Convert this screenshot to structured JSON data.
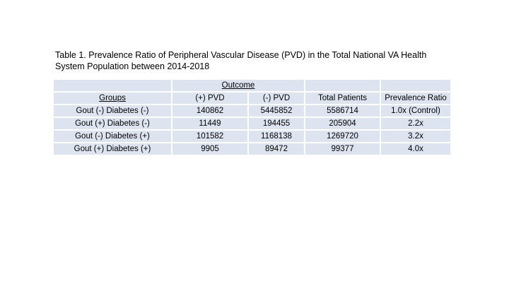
{
  "slide": {
    "title_line": "Table 1. Prevalence Ratio of Peripheral Vascular Disease (PVD) in the Total National VA Health System Population between 2014-2018"
  },
  "table": {
    "outcome_header": "Outcome",
    "columns": [
      "Groups",
      "(+) PVD",
      "(-) PVD",
      "Total Patients",
      "Prevalence Ratio"
    ],
    "rows": [
      {
        "group": "Gout (-) Diabetes (-)",
        "pvd_pos": "140862",
        "pvd_neg": "5445852",
        "total": "5586714",
        "ratio": "1.0x (Control)"
      },
      {
        "group": "Gout (+) Diabetes (-)",
        "pvd_pos": "11449",
        "pvd_neg": "194455",
        "total": "205904",
        "ratio": "2.2x"
      },
      {
        "group": "Gout (-) Diabetes (+)",
        "pvd_pos": "101582",
        "pvd_neg": "1168138",
        "total": "1269720",
        "ratio": "3.2x"
      },
      {
        "group": "Gout (+) Diabetes (+)",
        "pvd_pos": "9905",
        "pvd_neg": "89472",
        "total": "99377",
        "ratio": "4.0x"
      }
    ],
    "colors": {
      "row_fill": "#dde4f0",
      "separator": "#ffffff",
      "text": "#000000"
    }
  }
}
